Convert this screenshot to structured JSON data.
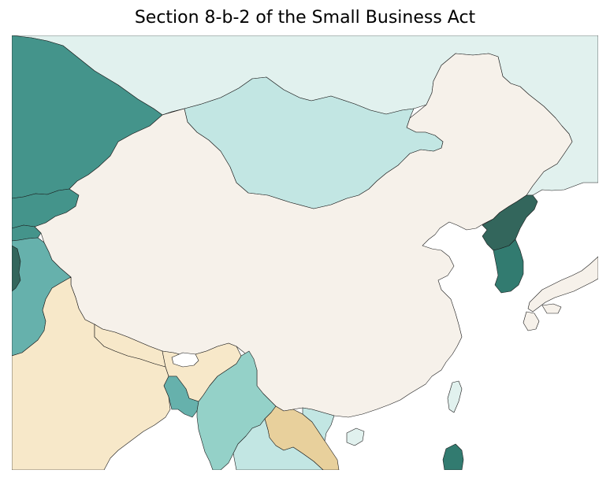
{
  "title": "Section 8-b-2 of the Small Business Act",
  "colors": {
    "sea": "#ffffff",
    "china": "#f6f1ea",
    "russia": "#e1f1ee",
    "mongolia": "#c2e6e3",
    "kazakhstan": "#44948b",
    "kyrgyzstan": "#44948b",
    "tajikistan": "#44948b",
    "afghanistan": "#66b1ac",
    "pakistan": "#66b1ac",
    "kashmir_strip": "#33665c",
    "india": "#f7e8c9",
    "nepal": "#f7e8c9",
    "bhutan": "#ffffff",
    "bangladesh": "#66b1ac",
    "myanmar": "#94d1c8",
    "laos": "#e8d09c",
    "vietnam": "#c2e6e3",
    "thailand": "#c2e6e3",
    "north_korea": "#33665c",
    "south_korea": "#327b70",
    "japan": "#f6f1ea",
    "taiwan": "#e1f1ee",
    "philippines": "#327b70",
    "hainan": "#e1f1ee"
  }
}
